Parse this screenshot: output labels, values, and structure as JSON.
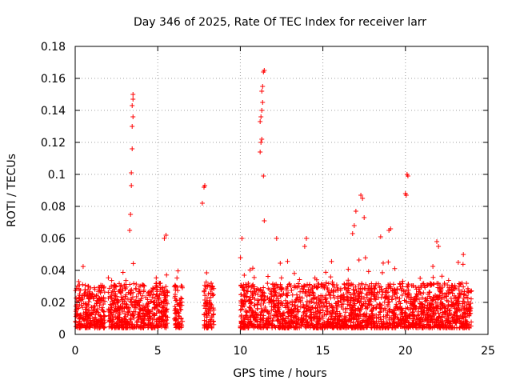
{
  "chart_data": {
    "type": "scatter",
    "title": "Day 346 of 2025, Rate Of TEC Index for receiver larr",
    "xlabel": "GPS time / hours",
    "ylabel": "ROTI / TECUs",
    "xlim": [
      0,
      25
    ],
    "ylim": [
      0,
      0.18
    ],
    "xticks": [
      0,
      5,
      10,
      15,
      20,
      25
    ],
    "xtick_labels": [
      "0",
      "5",
      "10",
      "15",
      "20",
      "25"
    ],
    "yticks": [
      0,
      0.02,
      0.04,
      0.06,
      0.08,
      0.1,
      0.12,
      0.14,
      0.16,
      0.18
    ],
    "ytick_labels": [
      "0",
      "0.02",
      "0.04",
      "0.06",
      "0.08",
      "0.1",
      "0.12",
      "0.14",
      "0.16",
      "0.18"
    ],
    "grid": true,
    "marker": "plus",
    "color": "#ff0000",
    "series": [
      {
        "name": "ROTI",
        "note": "Dense point cloud (approx. 0.005–0.04 TECU/s) over observed segments; listed points are representative and outlier samples.",
        "segments": [
          [
            0.0,
            1.8
          ],
          [
            2.0,
            5.6
          ],
          [
            6.0,
            6.5
          ],
          [
            7.8,
            8.4
          ],
          [
            10.0,
            24.0
          ]
        ],
        "points": [
          [
            3.3,
            0.065
          ],
          [
            3.35,
            0.075
          ],
          [
            3.4,
            0.093
          ],
          [
            3.4,
            0.101
          ],
          [
            3.45,
            0.116
          ],
          [
            3.45,
            0.13
          ],
          [
            3.5,
            0.136
          ],
          [
            3.45,
            0.143
          ],
          [
            3.5,
            0.147
          ],
          [
            3.5,
            0.15
          ],
          [
            5.4,
            0.06
          ],
          [
            5.5,
            0.062
          ],
          [
            7.7,
            0.082
          ],
          [
            7.8,
            0.092
          ],
          [
            7.85,
            0.093
          ],
          [
            10.1,
            0.06
          ],
          [
            11.2,
            0.114
          ],
          [
            11.25,
            0.12
          ],
          [
            11.3,
            0.122
          ],
          [
            11.2,
            0.133
          ],
          [
            11.25,
            0.136
          ],
          [
            11.3,
            0.14
          ],
          [
            11.35,
            0.145
          ],
          [
            11.3,
            0.152
          ],
          [
            11.35,
            0.155
          ],
          [
            11.4,
            0.164
          ],
          [
            11.45,
            0.165
          ],
          [
            11.4,
            0.099
          ],
          [
            11.45,
            0.071
          ],
          [
            12.2,
            0.06
          ],
          [
            13.9,
            0.055
          ],
          [
            14.0,
            0.06
          ],
          [
            16.8,
            0.063
          ],
          [
            16.9,
            0.068
          ],
          [
            17.0,
            0.077
          ],
          [
            17.3,
            0.087
          ],
          [
            17.4,
            0.085
          ],
          [
            17.5,
            0.073
          ],
          [
            18.5,
            0.061
          ],
          [
            19.0,
            0.065
          ],
          [
            19.1,
            0.066
          ],
          [
            20.0,
            0.088
          ],
          [
            20.05,
            0.087
          ],
          [
            20.1,
            0.1
          ],
          [
            20.15,
            0.099
          ],
          [
            21.9,
            0.058
          ],
          [
            22.0,
            0.055
          ],
          [
            23.2,
            0.045
          ]
        ]
      }
    ]
  }
}
